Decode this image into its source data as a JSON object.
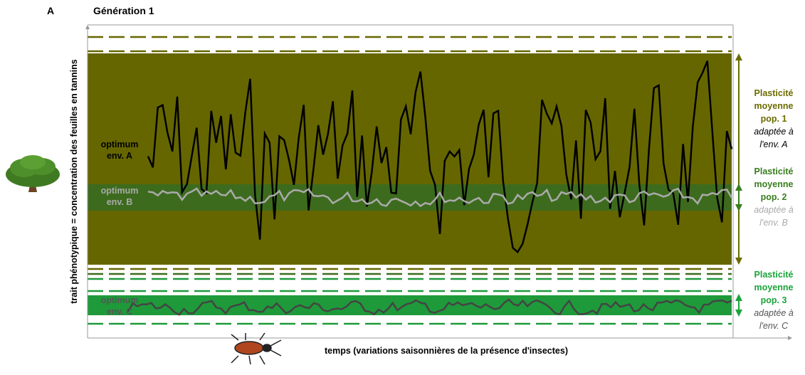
{
  "panel_label": "A",
  "title": "Génération 1",
  "y_axis_label": "trait phénotypique = concentration des feuilles en tannins",
  "x_axis_label": "temps (variations saisonnières de la présence d'insectes)",
  "optima": [
    {
      "line1": "optimum",
      "line2": "env. A"
    },
    {
      "line1": "optimum",
      "line2": "env. B"
    },
    {
      "line1": "optimum",
      "line2": "env. C"
    }
  ],
  "populations": [
    {
      "line1": "Plasticité",
      "line2": "moyenne",
      "line3": "pop. 1",
      "line4": "adaptée à",
      "line5": "l'env. A"
    },
    {
      "line1": "Plasticité",
      "line2": "moyenne",
      "line3": "pop. 2",
      "line4": "adaptée à",
      "line5": "l'env. B"
    },
    {
      "line1": "Plasticité",
      "line2": "moyenne",
      "line3": "pop. 3",
      "line4": "adaptée à",
      "line5": "l'env. C"
    }
  ]
}
